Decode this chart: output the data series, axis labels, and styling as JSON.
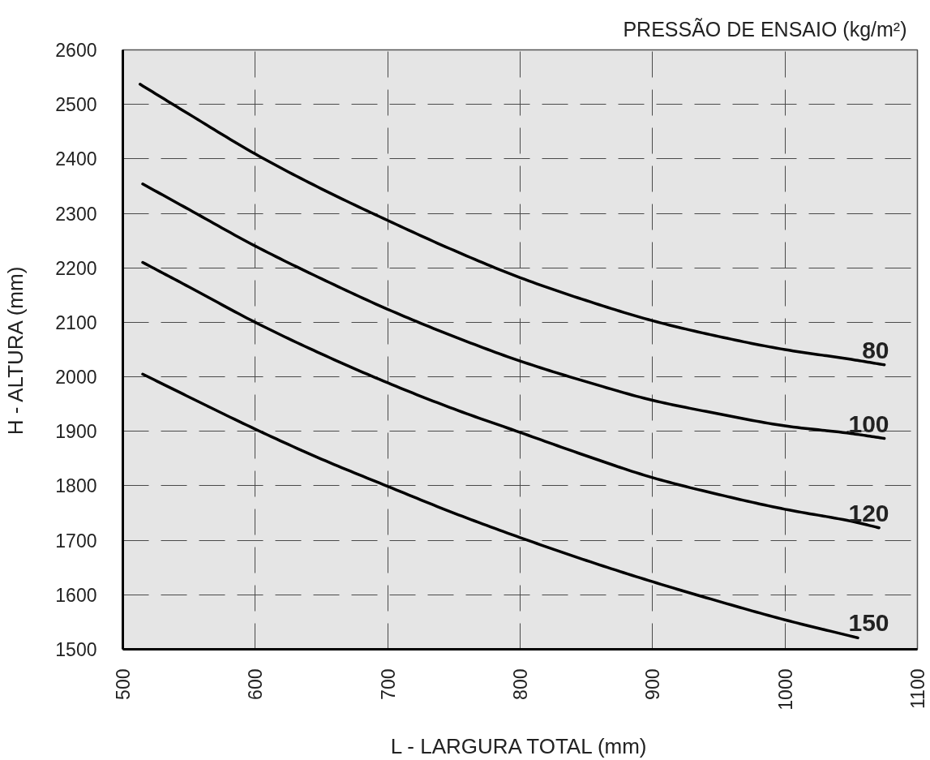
{
  "chart_data": {
    "type": "line",
    "legend_title": "PRESSÃO DE ENSAIO (kg/m²)",
    "xlabel": "L - LARGURA TOTAL (mm)",
    "ylabel": "H - ALTURA (mm)",
    "xlim": [
      500,
      1100
    ],
    "xticks": [
      500,
      600,
      700,
      800,
      900,
      1000,
      1100
    ],
    "ylim": [
      1500,
      2600
    ],
    "yticks": [
      1500,
      1600,
      1700,
      1800,
      1900,
      2000,
      2100,
      2200,
      2300,
      2400,
      2500,
      2600
    ],
    "grid": true,
    "marker": "none",
    "line_style": "solid",
    "series": [
      {
        "name": "80",
        "color": "#000000",
        "x": [
          513,
          550,
          600,
          650,
          700,
          750,
          800,
          850,
          900,
          950,
          1000,
          1050,
          1075
        ],
        "values": [
          2537,
          2482,
          2409,
          2345,
          2287,
          2232,
          2182,
          2140,
          2103,
          2074,
          2050,
          2032,
          2022
        ]
      },
      {
        "name": "100",
        "color": "#000000",
        "x": [
          515,
          550,
          600,
          650,
          700,
          750,
          800,
          850,
          900,
          950,
          1000,
          1050,
          1075
        ],
        "values": [
          2354,
          2307,
          2240,
          2180,
          2124,
          2074,
          2029,
          1991,
          1957,
          1932,
          1910,
          1896,
          1887
        ]
      },
      {
        "name": "120",
        "color": "#000000",
        "x": [
          515,
          550,
          600,
          650,
          700,
          750,
          800,
          850,
          900,
          950,
          1000,
          1050,
          1071
        ],
        "values": [
          2210,
          2165,
          2100,
          2042,
          1989,
          1941,
          1898,
          1855,
          1815,
          1784,
          1757,
          1735,
          1723
        ]
      },
      {
        "name": "150",
        "color": "#000000",
        "x": [
          515,
          550,
          600,
          650,
          700,
          750,
          800,
          850,
          900,
          950,
          1000,
          1050,
          1055
        ],
        "values": [
          2005,
          1963,
          1904,
          1849,
          1799,
          1750,
          1705,
          1663,
          1624,
          1588,
          1554,
          1524,
          1521
        ]
      }
    ]
  }
}
